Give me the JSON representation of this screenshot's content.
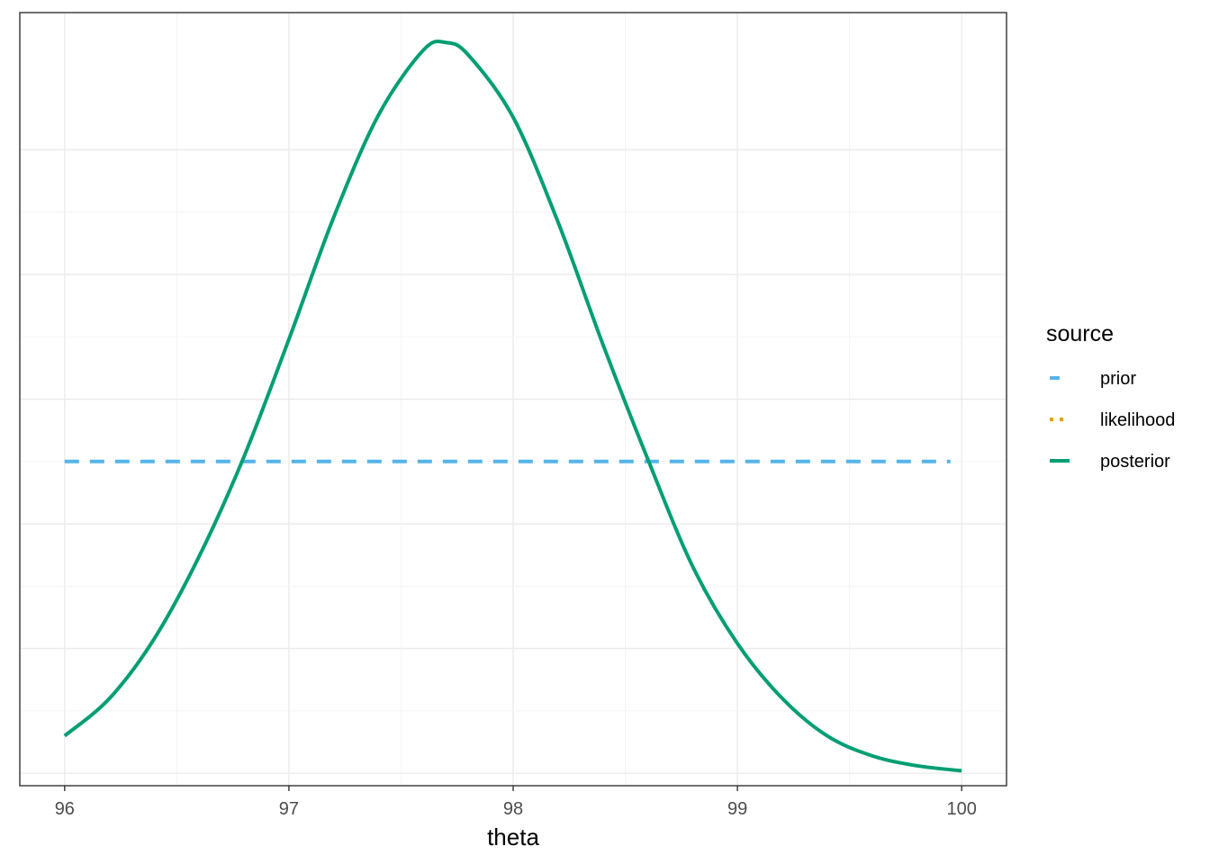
{
  "chart_data": {
    "type": "line",
    "xlabel": "theta",
    "ylabel": "",
    "xlim": [
      95.8,
      100.2
    ],
    "ylim": [
      -0.05,
      3.05
    ],
    "x_ticks": [
      96,
      97,
      98,
      99,
      100
    ],
    "x_tick_labels": [
      "96",
      "97",
      "98",
      "99",
      "100"
    ],
    "y_ticks": [
      0,
      0.5,
      1.0,
      1.5,
      2.0,
      2.5
    ],
    "y_tick_labels_shown": false,
    "grid": true,
    "legend": {
      "title": "source",
      "position": "right",
      "entries": [
        {
          "label": "prior",
          "color": "#56B4E9",
          "linetype": "dashed"
        },
        {
          "label": "likelihood",
          "color": "#E69F00",
          "linetype": "dotted"
        },
        {
          "label": "posterior",
          "color": "#009E73",
          "linetype": "solid"
        }
      ]
    },
    "series": [
      {
        "name": "prior",
        "color": "#56B4E9",
        "linetype": "dashed",
        "x": [
          96.0,
          99.95
        ],
        "y": [
          1.25,
          1.25
        ]
      },
      {
        "name": "likelihood",
        "color": "#E69F00",
        "linetype": "dotted",
        "x": [],
        "y": []
      },
      {
        "name": "posterior",
        "color": "#009E73",
        "linetype": "solid",
        "x": [
          96.0,
          96.2,
          96.4,
          96.6,
          96.8,
          97.0,
          97.2,
          97.4,
          97.6,
          97.7,
          97.8,
          98.0,
          98.2,
          98.4,
          98.6,
          98.8,
          99.0,
          99.2,
          99.4,
          99.6,
          99.8,
          100.0
        ],
        "y": [
          0.15,
          0.3,
          0.54,
          0.87,
          1.27,
          1.74,
          2.23,
          2.64,
          2.9,
          2.93,
          2.88,
          2.63,
          2.21,
          1.72,
          1.26,
          0.83,
          0.52,
          0.3,
          0.15,
          0.07,
          0.03,
          0.01
        ]
      }
    ]
  }
}
